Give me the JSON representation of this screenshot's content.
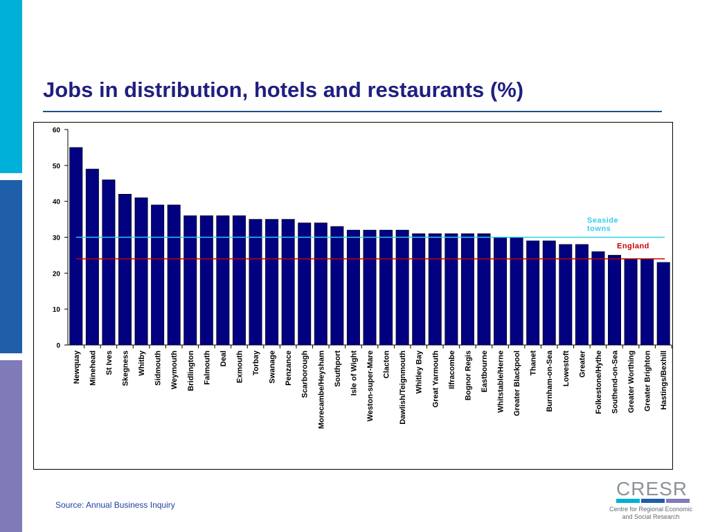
{
  "title": "Jobs in distribution, hotels and restaurants (%)",
  "source": "Source: Annual Business Inquiry",
  "logo": {
    "name": "CRESR",
    "subtitle_line1": "Centre for Regional Economic",
    "subtitle_line2": "and Social Research"
  },
  "colors": {
    "bar": "#000080",
    "seaside_line": "#33ccee",
    "england_line": "#cc0000",
    "title": "#1f1f80",
    "sidebar": [
      "#00b0d8",
      "#1f5ea8",
      "#7f7ab8"
    ]
  },
  "chart_data": {
    "type": "bar",
    "title": "",
    "xlabel": "",
    "ylabel": "",
    "ylim": [
      0,
      60
    ],
    "yticks": [
      0,
      10,
      20,
      30,
      40,
      50,
      60
    ],
    "grid": false,
    "categories": [
      "Newquay",
      "Minehead",
      "St Ives",
      "Skegness",
      "Whitby",
      "Sidmouth",
      "Weymouth",
      "Bridlington",
      "Falmouth",
      "Deal",
      "Exmouth",
      "Torbay",
      "Swanage",
      "Penzance",
      "Scarborough",
      "Morecambe/Heysham",
      "Southport",
      "Isle of Wight",
      "Weston-super-Mare",
      "Clacton",
      "Dawlish/Teignmouth",
      "Whitley Bay",
      "Great Yarmouth",
      "Ilfracombe",
      "Bognor Regis",
      "Eastbourne",
      "Whitstable/Herne",
      "Greater Blackpool",
      "Thanet",
      "Burnham-on-Sea",
      "Lowestoft",
      "Greater",
      "Folkestone/Hythe",
      "Southend-on-Sea",
      "Greater Worthing",
      "Greater Brighton",
      "Hastings/Bexhill"
    ],
    "values": [
      55,
      49,
      46,
      42,
      41,
      39,
      39,
      36,
      36,
      36,
      36,
      35,
      35,
      35,
      34,
      34,
      33,
      32,
      32,
      32,
      32,
      31,
      31,
      31,
      31,
      31,
      30,
      30,
      29,
      29,
      28,
      28,
      26,
      25,
      24,
      24,
      23
    ],
    "reference_lines": [
      {
        "name": "Seaside towns",
        "label_line1": "Seaside",
        "label_line2": "towns",
        "value": 30
      },
      {
        "name": "England",
        "label_line1": "England",
        "value": 24
      }
    ]
  }
}
